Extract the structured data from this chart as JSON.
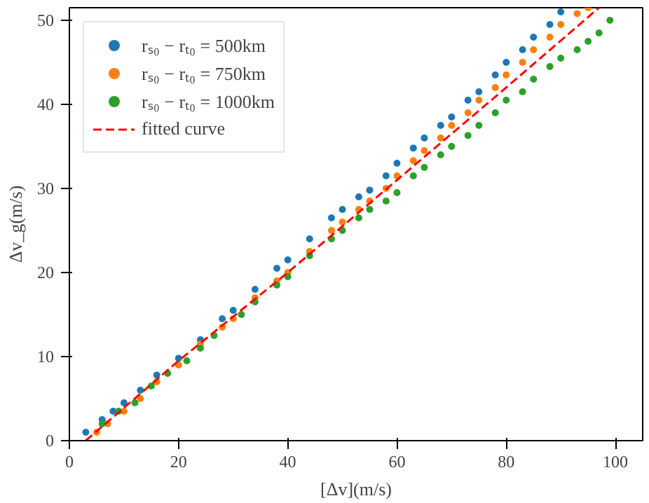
{
  "chart_data": {
    "type": "scatter",
    "xlabel": "[Δv](m/s)",
    "ylabel": "Δv_g(m/s)",
    "xlim": [
      0,
      105
    ],
    "ylim": [
      0,
      51.5
    ],
    "xticks": [
      0,
      20,
      40,
      60,
      80,
      100
    ],
    "yticks": [
      0,
      10,
      20,
      30,
      40,
      50
    ],
    "grid": false,
    "legend": "top left",
    "series": [
      {
        "name": "rₛ₀ − rₜ₀ = 500km",
        "marker": "circle",
        "color": "#1f77b4",
        "x": [
          3,
          6,
          8,
          10,
          13,
          16,
          20,
          24,
          28,
          30,
          34,
          38,
          40,
          44,
          48,
          50,
          53,
          55,
          58,
          60,
          63,
          65,
          68,
          70,
          73,
          75,
          78,
          80,
          83,
          85,
          88,
          90
        ],
        "values": [
          1,
          2.5,
          3.5,
          4.5,
          6,
          7.8,
          9.8,
          12,
          14.5,
          15.5,
          18,
          20.5,
          21.5,
          24,
          26.5,
          27.5,
          29,
          29.8,
          31.5,
          33,
          34.8,
          36,
          37.5,
          38.5,
          40.5,
          41.5,
          43.5,
          45,
          46.5,
          48,
          49.5,
          51
        ]
      },
      {
        "name": "rₛ₀ − rₜ₀ = 750km",
        "marker": "circle",
        "color": "#ff7f0e",
        "x": [
          5,
          7,
          10,
          13,
          16,
          20,
          24,
          28,
          30,
          34,
          38,
          40,
          44,
          48,
          50,
          53,
          55,
          58,
          60,
          63,
          65,
          68,
          70,
          73,
          75,
          78,
          80,
          83,
          85,
          88,
          90,
          93,
          95
        ],
        "values": [
          1,
          2,
          3.5,
          5,
          7,
          9,
          11.5,
          13.5,
          14.5,
          17,
          19,
          20,
          22.5,
          25,
          26,
          27.5,
          28.5,
          30,
          31.5,
          33.3,
          34.5,
          36,
          37.5,
          39,
          40.5,
          42,
          43.5,
          45,
          46.5,
          48,
          49.5,
          50.8,
          51.5
        ]
      },
      {
        "name": "rₛ₀ − rₜ₀ = 1000km",
        "marker": "circle",
        "color": "#2ca02c",
        "x": [
          6,
          9,
          12,
          15,
          18,
          21.5,
          24,
          26.5,
          31.5,
          34,
          38,
          40,
          44,
          48,
          50,
          53,
          55,
          58,
          60,
          63,
          65,
          68,
          70,
          73,
          75,
          78,
          80,
          83,
          85,
          88,
          90,
          93,
          95,
          97,
          99
        ],
        "values": [
          2,
          3.5,
          4.5,
          6.5,
          8,
          9.5,
          11,
          12.5,
          15,
          16.5,
          18.5,
          19.5,
          22,
          24,
          25,
          26.5,
          27.5,
          28.5,
          29.5,
          31.5,
          32.5,
          34,
          35,
          36.3,
          37.5,
          39,
          40.5,
          41.5,
          43,
          44.5,
          45.5,
          46.5,
          47.5,
          48.5,
          50
        ]
      },
      {
        "name": "fitted curve",
        "type": "line",
        "color": "#ff0000",
        "line_style": "dashed",
        "x": [
          3,
          20,
          40,
          60,
          80,
          97
        ],
        "values": [
          0,
          9.5,
          20,
          31,
          42,
          51.5
        ]
      }
    ]
  }
}
